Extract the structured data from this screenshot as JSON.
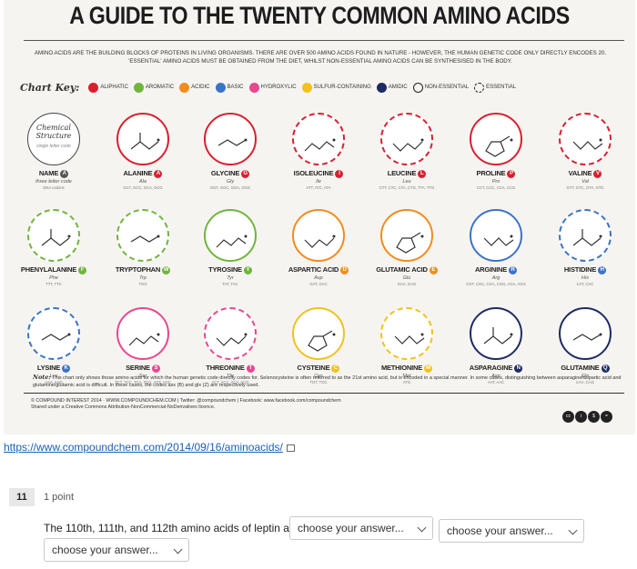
{
  "poster": {
    "title": "A GUIDE TO THE TWENTY COMMON AMINO ACIDS",
    "subtitle": "AMINO ACIDS ARE THE BUILDING BLOCKS OF PROTEINS IN LIVING ORGANISMS. THERE ARE OVER 500 AMINO ACIDS FOUND IN NATURE - HOWEVER, THE HUMAN GENETIC CODE ONLY DIRECTLY ENCODES 20. 'ESSENTIAL' AMINO ACIDS MUST BE OBTAINED FROM THE DIET, WHILST NON-ESSENTIAL AMINO ACIDS CAN BE SYNTHESISED IN THE BODY.",
    "key_title": "Chart Key:",
    "key": [
      {
        "label": "ALIPHATIC",
        "color": "#d8202f"
      },
      {
        "label": "AROMATIC",
        "color": "#6fb53e"
      },
      {
        "label": "ACIDIC",
        "color": "#f28c1c"
      },
      {
        "label": "BASIC",
        "color": "#3a74c8"
      },
      {
        "label": "HYDROXYLIC",
        "color": "#e9478f"
      },
      {
        "label": "SULFUR-CONTAINING",
        "color": "#f2c21b"
      },
      {
        "label": "AMIDIC",
        "color": "#1e2b63"
      },
      {
        "label": "NON-ESSENTIAL",
        "color": "#222222"
      },
      {
        "label": "ESSENTIAL",
        "color": "#222222"
      }
    ],
    "legend_cell": {
      "title": "Chemical Structure",
      "small": "single letter code",
      "name": "NAME",
      "badge": "A",
      "abbr": "three letter code",
      "codons": "DNA codons"
    },
    "amino_acids": [
      {
        "name": "ALANINE",
        "badge": "A",
        "abbr": "Ala",
        "codons": "GCT, GCC, GCA, GCG",
        "color": "#d8202f",
        "essential": false
      },
      {
        "name": "GLYCINE",
        "badge": "G",
        "abbr": "Gly",
        "codons": "GGT, GGC, GGA, GGG",
        "color": "#d8202f",
        "essential": false
      },
      {
        "name": "ISOLEUCINE",
        "badge": "I",
        "abbr": "Ile",
        "codons": "ATT, ATC, ATA",
        "color": "#d8202f",
        "essential": true
      },
      {
        "name": "LEUCINE",
        "badge": "L",
        "abbr": "Leu",
        "codons": "CTT, CTC, CTA, CTG, TTA, TTG",
        "color": "#d8202f",
        "essential": true
      },
      {
        "name": "PROLINE",
        "badge": "P",
        "abbr": "Pro",
        "codons": "CCT, CCC, CCA, CCG",
        "color": "#d8202f",
        "essential": false
      },
      {
        "name": "VALINE",
        "badge": "V",
        "abbr": "Val",
        "codons": "GTT, GTC, GTA, GTG",
        "color": "#d8202f",
        "essential": true
      },
      {
        "name": "PHENYLALANINE",
        "badge": "F",
        "abbr": "Phe",
        "codons": "TTT, TTC",
        "color": "#6fb53e",
        "essential": true
      },
      {
        "name": "TRYPTOPHAN",
        "badge": "W",
        "abbr": "Trp",
        "codons": "TGG",
        "color": "#6fb53e",
        "essential": true
      },
      {
        "name": "TYROSINE",
        "badge": "Y",
        "abbr": "Tyr",
        "codons": "TAT, TAC",
        "color": "#6fb53e",
        "essential": false
      },
      {
        "name": "ASPARTIC ACID",
        "badge": "D",
        "abbr": "Asp",
        "codons": "GAT, GAC",
        "color": "#f28c1c",
        "essential": false
      },
      {
        "name": "GLUTAMIC ACID",
        "badge": "E",
        "abbr": "Glu",
        "codons": "GAA, GAG",
        "color": "#f28c1c",
        "essential": false
      },
      {
        "name": "ARGININE",
        "badge": "R",
        "abbr": "Arg",
        "codons": "CGT, CGC, CGA, CGG, AGA, AGG",
        "color": "#3a74c8",
        "essential": false
      },
      {
        "name": "HISTIDINE",
        "badge": "H",
        "abbr": "His",
        "codons": "CAT, CAC",
        "color": "#3a74c8",
        "essential": true
      },
      {
        "name": "LYSINE",
        "badge": "K",
        "abbr": "Lys",
        "codons": "AAA, AAG",
        "color": "#3a74c8",
        "essential": true
      },
      {
        "name": "SERINE",
        "badge": "S",
        "abbr": "Ser",
        "codons": "TCT, TCC, TCA, TCG, AGT, AGC",
        "color": "#e9478f",
        "essential": false
      },
      {
        "name": "THREONINE",
        "badge": "T",
        "abbr": "Thr",
        "codons": "ACT, ACC, ACA, ACG",
        "color": "#e9478f",
        "essential": true
      },
      {
        "name": "CYSTEINE",
        "badge": "C",
        "abbr": "Cys",
        "codons": "TGT, TGC",
        "color": "#f2c21b",
        "essential": false
      },
      {
        "name": "METHIONINE",
        "badge": "M",
        "abbr": "Met",
        "codons": "ATG",
        "color": "#f2c21b",
        "essential": true
      },
      {
        "name": "ASPARAGINE",
        "badge": "N",
        "abbr": "Asn",
        "codons": "AAT, AAC",
        "color": "#1e2b63",
        "essential": false
      },
      {
        "name": "GLUTAMINE",
        "badge": "Q",
        "abbr": "Gln",
        "codons": "CAA, CAG",
        "color": "#1e2b63",
        "essential": false
      }
    ],
    "note_label": "Note:",
    "note": "This chart only shows those amino acids for which the human genetic code directly codes for. Selenocysteine is often referred to as the 21st amino acid, but is encoded in a special manner. In some cases, distinguishing between asparagine/aspartic acid and glutamine/glutamic acid is difficult. In these cases, the codes asx (B) and glx (Z) are respectively used.",
    "footer_line1": "© COMPOUND INTEREST 2014 · WWW.COMPOUNDCHEM.COM | Twitter: @compoundchem | Facebook: www.facebook.com/compoundchem",
    "footer_line2": "Shared under a Creative Commons Attribution-NonCommercial-NoDerivatives licence.",
    "cc_badges": [
      "cc",
      "i",
      "$",
      "="
    ]
  },
  "link": {
    "text": "https://www.compoundchem.com/2014/09/16/aminoacids/"
  },
  "question": {
    "number": "11",
    "points": "1 point",
    "text": "The 110th, 111th, and 112th amino acids of leptin are",
    "select1": "choose your answer...",
    "select2": "choose your answer...",
    "select3": "choose your answer..."
  }
}
